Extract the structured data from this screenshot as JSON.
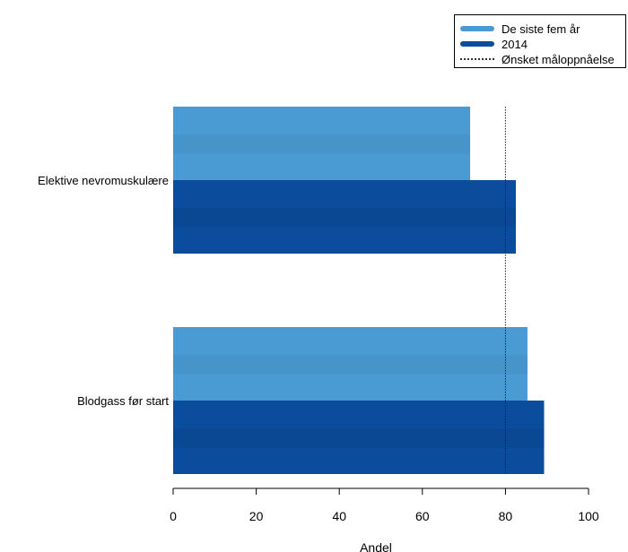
{
  "chart_data": {
    "type": "bar",
    "orientation": "horizontal",
    "categories": [
      "Elektive nevromuskulære",
      "Blodgass før start"
    ],
    "series": [
      {
        "name": "De siste fem år",
        "values": [
          71.5,
          85.3
        ],
        "color": "#4a9bd4"
      },
      {
        "name": "2014",
        "values": [
          82.5,
          89.3
        ],
        "color": "#0b4c9c"
      }
    ],
    "target": {
      "name": "Ønsket måloppnåelse",
      "value": 80
    },
    "xlabel": "Andel",
    "ylabel": "",
    "title": "",
    "xlim": [
      0,
      100
    ],
    "xticks": [
      0,
      20,
      40,
      60,
      80,
      100
    ],
    "xtick_labels": [
      "0",
      "20",
      "40",
      "60",
      "80",
      "100"
    ],
    "grid": false,
    "legend_position": "top-right"
  },
  "legend": {
    "items": [
      {
        "label": "De siste fem år",
        "kind": "bar",
        "color": "#4a9bd4"
      },
      {
        "label": "2014",
        "kind": "bar",
        "color": "#0b4c9c"
      },
      {
        "label": "Ønsket måloppnåelse",
        "kind": "dotted-line",
        "color": "#333333"
      }
    ]
  }
}
